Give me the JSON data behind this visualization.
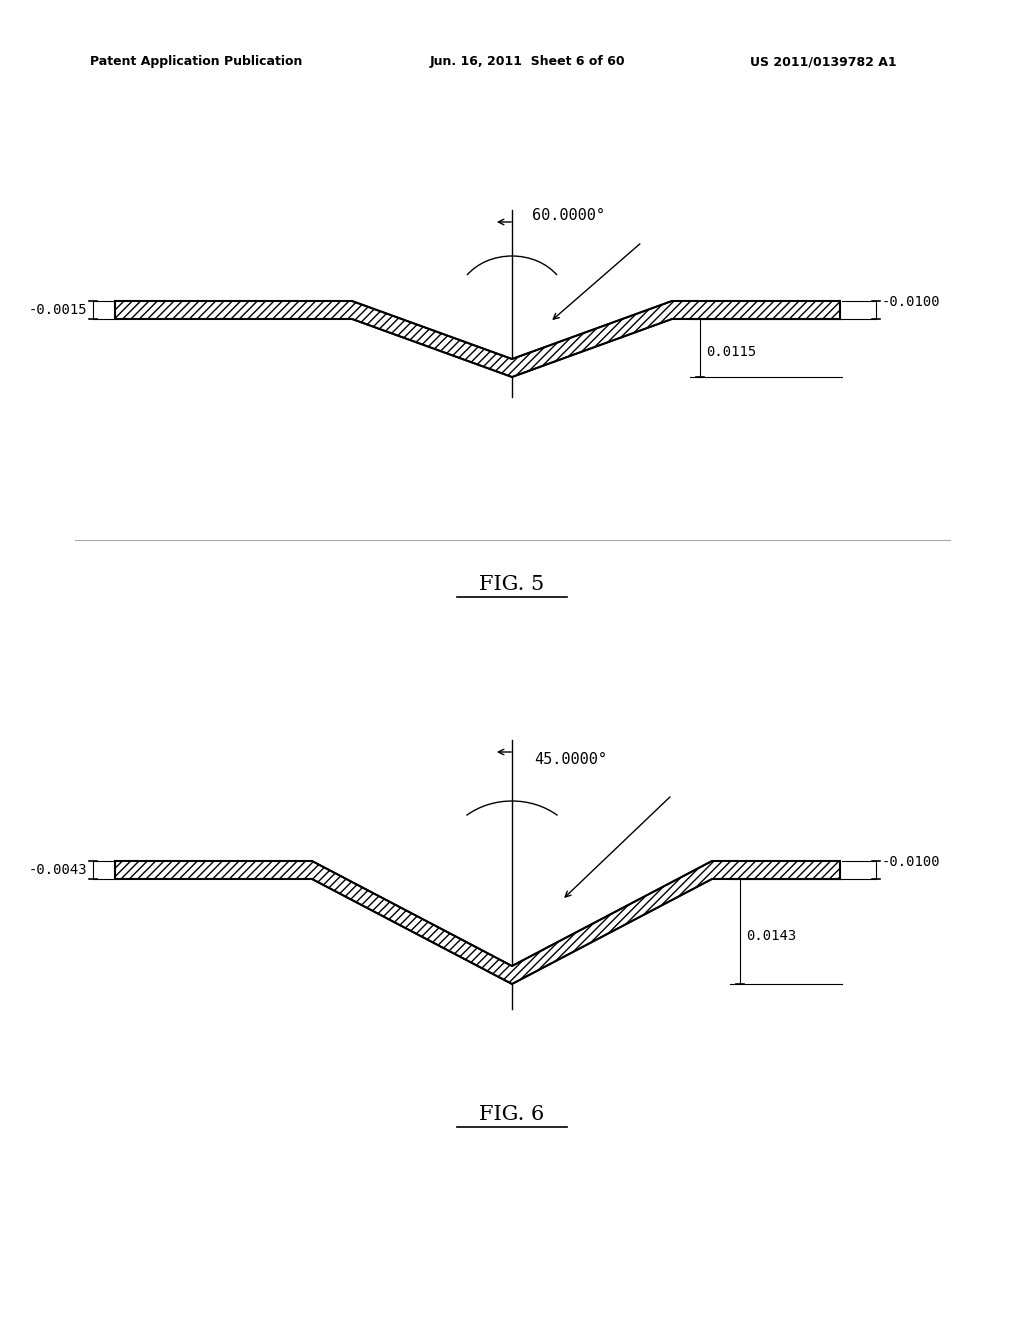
{
  "background_color": "#ffffff",
  "header_left": "Patent Application Publication",
  "header_mid": "Jun. 16, 2011  Sheet 6 of 60",
  "header_right": "US 2011/0139782 A1",
  "fig5_label": "FIG. 5",
  "fig6_label": "FIG. 6",
  "fig5_angle": "60.0000°",
  "fig5_dim_left": "-0.0015",
  "fig5_dim_right_top": "-0.0100",
  "fig5_dim_right_bottom": "0.0115",
  "fig6_angle": "45.0000°",
  "fig6_dim_left": "-0.0043",
  "fig6_dim_right_top": "-0.0100",
  "fig6_dim_right_bottom": "0.0143",
  "hatch_pattern": "////",
  "line_color": "#000000",
  "text_color": "#000000",
  "font_size_header": 9,
  "font_size_label": 15,
  "font_size_dim": 10
}
